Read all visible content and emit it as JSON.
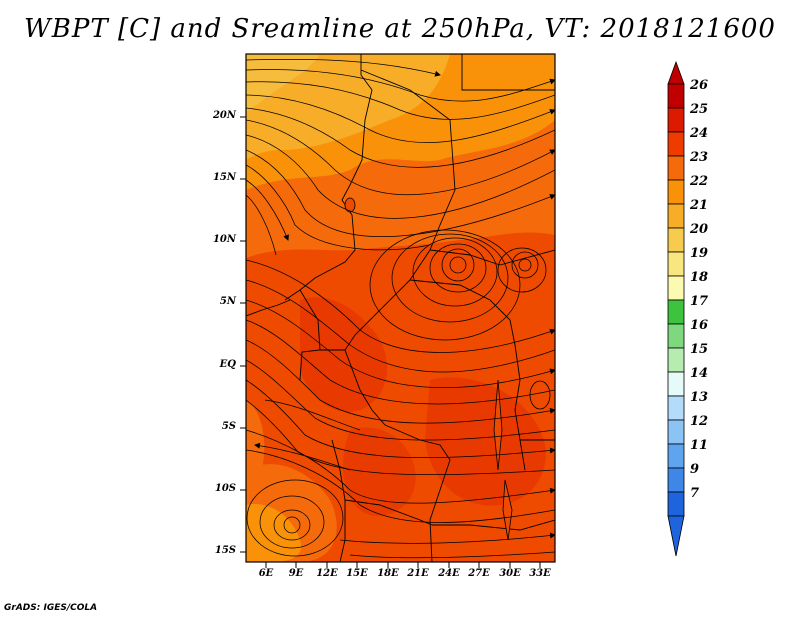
{
  "title": "WBPT [C] and Sreamline at 250hPa, VT: 2018121600",
  "credit": "GrADS: IGES/COLA",
  "map": {
    "region": "Central and East Africa",
    "lon_range": [
      3,
      33.5
    ],
    "lat_range": [
      -15.5,
      24.5
    ],
    "lat_labels": [
      "20N",
      "15N",
      "10N",
      "5N",
      "EQ",
      "5S",
      "10S",
      "15S"
    ],
    "lat_values": [
      20,
      15,
      10,
      5,
      0,
      -5,
      -10,
      -15
    ],
    "lon_labels": [
      "6E",
      "9E",
      "12E",
      "15E",
      "18E",
      "21E",
      "24E",
      "27E",
      "30E",
      "33E"
    ],
    "lon_values": [
      6,
      9,
      12,
      15,
      18,
      21,
      24,
      27,
      30,
      33
    ],
    "field": "wet-bulb potential temperature",
    "overlay": "streamlines"
  },
  "colorbar": {
    "labels": [
      "26",
      "25",
      "24",
      "23",
      "22",
      "21",
      "20",
      "19",
      "18",
      "17",
      "16",
      "15",
      "14",
      "13",
      "12",
      "11",
      "9",
      "7"
    ],
    "colors": [
      "#c00000",
      "#dc1a00",
      "#ee3c00",
      "#f56a0a",
      "#f99209",
      "#f7ad28",
      "#f6cb4e",
      "#f8e67e",
      "#fcf9b0",
      "#3ec33e",
      "#7ed97e",
      "#b6ecb0",
      "#e4fbfa",
      "#b3dcfa",
      "#8cc3f5",
      "#5fa4ef",
      "#3f87e6",
      "#1e64dc"
    ]
  }
}
